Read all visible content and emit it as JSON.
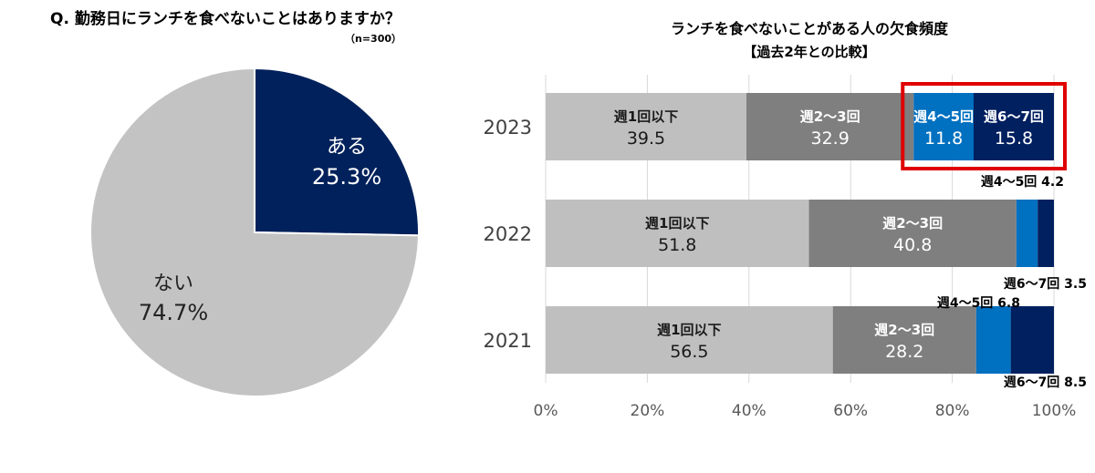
{
  "colors": {
    "pie_yes": "#00215B",
    "pie_no": "#C3C3C3",
    "seg1": "#BFBFBF",
    "seg2": "#7F7F7F",
    "seg3": "#0070C0",
    "seg4": "#002060",
    "highlight": "#E00000",
    "grid": "#D9D9D9"
  },
  "chart_data": [
    {
      "type": "pie",
      "title": "Q. 勤務日にランチを食べないことはありますか？",
      "note": "（n=300）",
      "slices": [
        {
          "label": "ある",
          "value": 25.3,
          "display": "25.3%",
          "color": "#00215B"
        },
        {
          "label": "ない",
          "value": 74.7,
          "display": "74.7%",
          "color": "#C3C3C3"
        }
      ]
    },
    {
      "type": "bar",
      "orientation": "horizontal",
      "stacked": true,
      "title": "ランチを食べないことがある人の欠食頻度",
      "subtitle": "【過去2年との比較】",
      "categories": [
        "2023",
        "2022",
        "2021"
      ],
      "series": [
        {
          "name": "週1回以下",
          "color": "#BFBFBF",
          "values": [
            39.5,
            51.8,
            56.5
          ]
        },
        {
          "name": "週2～3回",
          "color": "#7F7F7F",
          "values": [
            32.9,
            40.8,
            28.2
          ]
        },
        {
          "name": "週4～5回",
          "color": "#0070C0",
          "values": [
            11.8,
            4.2,
            6.8
          ]
        },
        {
          "name": "週6～7回",
          "color": "#002060",
          "values": [
            15.8,
            3.5,
            8.5
          ]
        }
      ],
      "xlim": [
        0,
        100
      ],
      "xticks": [
        "0%",
        "20%",
        "40%",
        "60%",
        "80%",
        "100%"
      ],
      "callouts": [
        {
          "text": "週4～5回 4.2"
        },
        {
          "text": "週6～7回 3.5"
        },
        {
          "text": "週4～5回 6.8"
        },
        {
          "text": "週6～7回 8.5"
        }
      ],
      "highlight": "2023 週4～5回 / 週6～7回"
    }
  ]
}
